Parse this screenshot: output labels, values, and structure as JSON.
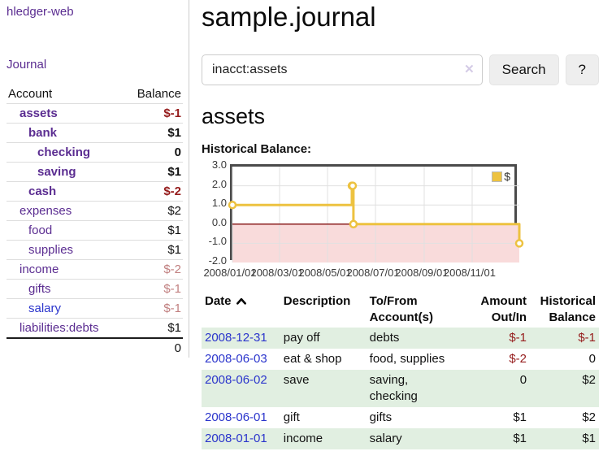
{
  "app": {
    "brand": "hledger-web",
    "title": "sample.journal"
  },
  "sidebar": {
    "journal_link": "Journal",
    "accounts_table": {
      "headers": {
        "account": "Account",
        "balance": "Balance"
      },
      "rows": [
        {
          "account": "assets",
          "balance": "$-1",
          "indent": 1,
          "bold": true,
          "balance_class": "neg-strong",
          "link": "purple"
        },
        {
          "account": "bank",
          "balance": "$1",
          "indent": 2,
          "bold": true,
          "balance_class": "pos-strong",
          "link": "purple"
        },
        {
          "account": "checking",
          "balance": "0",
          "indent": 3,
          "bold": true,
          "balance_class": "pos-strong",
          "link": "purple"
        },
        {
          "account": "saving",
          "balance": "$1",
          "indent": 3,
          "bold": true,
          "balance_class": "pos-strong",
          "link": "purple"
        },
        {
          "account": "cash",
          "balance": "$-2",
          "indent": 2,
          "bold": true,
          "balance_class": "neg-strong",
          "link": "purple"
        },
        {
          "account": "expenses",
          "balance": "$2",
          "indent": 1,
          "bold": false,
          "balance_class": "pos",
          "link": "purple"
        },
        {
          "account": "food",
          "balance": "$1",
          "indent": 2,
          "bold": false,
          "balance_class": "pos",
          "link": "purple"
        },
        {
          "account": "supplies",
          "balance": "$1",
          "indent": 2,
          "bold": false,
          "balance_class": "pos",
          "link": "purple"
        },
        {
          "account": "income",
          "balance": "$-2",
          "indent": 1,
          "bold": false,
          "balance_class": "neg-soft",
          "link": "purple"
        },
        {
          "account": "gifts",
          "balance": "$-1",
          "indent": 2,
          "bold": false,
          "balance_class": "neg-soft",
          "link": "purple"
        },
        {
          "account": "salary",
          "balance": "$-1",
          "indent": 2,
          "bold": false,
          "balance_class": "neg-soft",
          "link": "blue"
        },
        {
          "account": "liabilities:debts",
          "balance": "$1",
          "indent": 1,
          "bold": false,
          "balance_class": "pos",
          "link": "purple"
        }
      ],
      "total": "0"
    }
  },
  "search": {
    "query": "inacct:assets",
    "clear_glyph": "✕",
    "button_label": "Search",
    "help_label": "?"
  },
  "account_page": {
    "heading": "assets",
    "chart_label": "Historical Balance:"
  },
  "chart_data": {
    "type": "line",
    "title": "Historical Balance:",
    "legend": {
      "label": "$",
      "position": "top-right"
    },
    "series": [
      {
        "name": "$",
        "color": "#edc240",
        "step": true,
        "points": [
          {
            "x": "2008-01-01",
            "y": 1
          },
          {
            "x": "2008-06-01",
            "y": 2
          },
          {
            "x": "2008-06-02",
            "y": 2
          },
          {
            "x": "2008-06-03",
            "y": 0
          },
          {
            "x": "2008-12-31",
            "y": -1
          }
        ]
      }
    ],
    "x_range": [
      "2008-01-01",
      "2008-12-31"
    ],
    "ylim": [
      -2,
      3
    ],
    "y_ticks": [
      {
        "label": "3.0",
        "value": 3
      },
      {
        "label": "2.0",
        "value": 2
      },
      {
        "label": "1.0",
        "value": 1
      },
      {
        "label": "0.0",
        "value": 0
      },
      {
        "label": "-1.0",
        "value": -1
      },
      {
        "label": "-2.0",
        "value": -2
      }
    ],
    "x_ticks": [
      {
        "label": "2008/01/01",
        "date": "2008-01-01"
      },
      {
        "label": "2008/03/01",
        "date": "2008-03-01"
      },
      {
        "label": "2008/05/01",
        "date": "2008-05-01"
      },
      {
        "label": "2008/07/01",
        "date": "2008-07-01"
      },
      {
        "label": "2008/09/01",
        "date": "2008-09-01"
      },
      {
        "label": "2008/11/01",
        "date": "2008-11-01"
      }
    ],
    "grid": true,
    "negative_region_color": "#f9dbdb",
    "zero_line_color": "#8b1f1f",
    "marker": {
      "fill": "#ffffff",
      "stroke": "#edc240"
    }
  },
  "register_table": {
    "headers": {
      "date": "Date",
      "description": "Description",
      "accounts": "To/From Account(s)",
      "amount": "Amount Out/In",
      "balance": "Historical Balance"
    },
    "sort": {
      "column": "date",
      "direction": "ascending"
    },
    "rows": [
      {
        "date": "2008-12-31",
        "description": "pay off",
        "accounts": "debts",
        "amount": "$-1",
        "amount_class": "neg",
        "balance": "$-1",
        "balance_class": "neg",
        "shaded": true
      },
      {
        "date": "2008-06-03",
        "description": "eat & shop",
        "accounts": "food, supplies",
        "amount": "$-2",
        "amount_class": "neg",
        "balance": "0",
        "balance_class": "plain",
        "shaded": false
      },
      {
        "date": "2008-06-02",
        "description": "save",
        "accounts": "saving,\nchecking",
        "amount": "0",
        "amount_class": "plain",
        "balance": "$2",
        "balance_class": "plain",
        "shaded": true
      },
      {
        "date": "2008-06-01",
        "description": "gift",
        "accounts": "gifts",
        "amount": "$1",
        "amount_class": "plain",
        "balance": "$2",
        "balance_class": "plain",
        "shaded": false
      },
      {
        "date": "2008-01-01",
        "description": "income",
        "accounts": "salary",
        "amount": "$1",
        "amount_class": "plain",
        "balance": "$1",
        "balance_class": "plain",
        "shaded": true
      }
    ]
  },
  "colors": {
    "accent_purple": "#5b2d91",
    "link_blue": "#2b35cc",
    "negative_strong": "#951c1c",
    "negative_soft": "#c18080",
    "row_shade_green": "#e1efe1",
    "series_yellow": "#edc240",
    "negative_region_pink": "#f9dbdb",
    "zero_line_maroon": "#8b1f1f",
    "chart_border_gray": "#4a4a4a"
  }
}
